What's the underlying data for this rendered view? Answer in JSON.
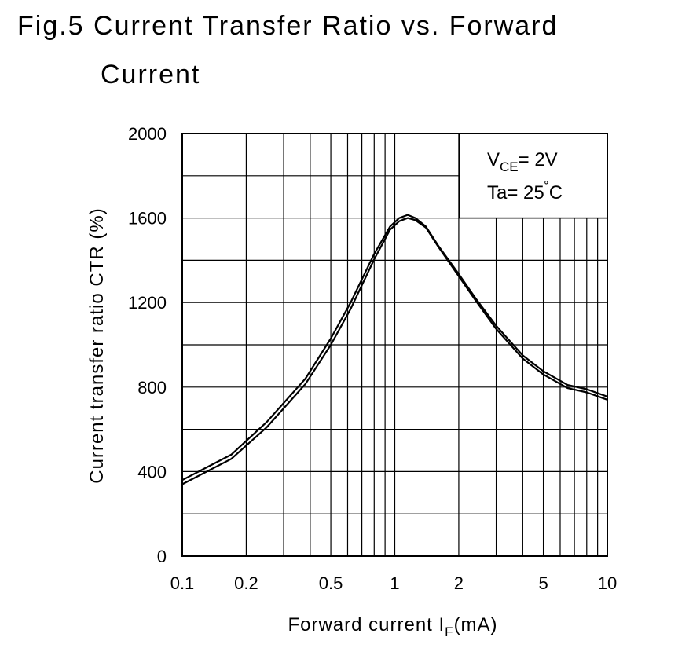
{
  "figure": {
    "title_line1": "Fig.5 Current Transfer Ratio vs. Forward",
    "title_line2": "Current"
  },
  "chart_data": {
    "type": "line",
    "title": "Fig.5 Current Transfer Ratio vs. Forward Current",
    "xlabel": "Forward current I",
    "xlabel_sub": "F",
    "xlabel_unit": "(mA)",
    "ylabel": "Current transfer ratio CTR (%)",
    "x_scale": "log",
    "xlim": [
      0.1,
      10
    ],
    "ylim": [
      0,
      2000
    ],
    "x_ticks": [
      0.1,
      0.2,
      0.5,
      1,
      2,
      5,
      10
    ],
    "x_tick_labels": [
      "0.1",
      "0.2",
      "0.5",
      "1",
      "2",
      "5",
      "10"
    ],
    "y_ticks": [
      0,
      400,
      800,
      1200,
      1600,
      2000
    ],
    "y_tick_labels": [
      "0",
      "400",
      "800",
      "1200",
      "1600",
      "2000"
    ],
    "grid": true,
    "legend": "none",
    "conditions": {
      "vce_prefix": "V",
      "vce_sub": "CE",
      "vce_value": "= 2V",
      "ta_prefix": "Ta= 25",
      "ta_degree": "˚",
      "ta_unit": "C"
    },
    "series": [
      {
        "x": [
          0.1,
          0.17,
          0.25,
          0.38,
          0.5,
          0.62,
          0.8,
          0.95,
          1.05,
          1.15,
          1.25,
          1.4,
          1.6,
          2.0,
          2.4,
          3.0,
          4.0,
          5.0,
          6.5,
          8.0,
          10.0
        ],
        "y": [
          360,
          480,
          635,
          840,
          1030,
          1200,
          1430,
          1560,
          1600,
          1615,
          1600,
          1560,
          1470,
          1335,
          1220,
          1090,
          950,
          875,
          810,
          790,
          755
        ]
      },
      {
        "x": [
          0.1,
          0.17,
          0.25,
          0.38,
          0.5,
          0.62,
          0.8,
          0.95,
          1.05,
          1.15,
          1.25,
          1.4,
          1.6,
          2.0,
          2.4,
          3.0,
          4.0,
          5.0,
          6.5,
          8.0,
          10.0
        ],
        "y": [
          340,
          460,
          610,
          815,
          1000,
          1170,
          1405,
          1545,
          1585,
          1600,
          1590,
          1555,
          1465,
          1325,
          1210,
          1075,
          935,
          860,
          795,
          775,
          740
        ]
      }
    ],
    "line_color": "#000000"
  }
}
